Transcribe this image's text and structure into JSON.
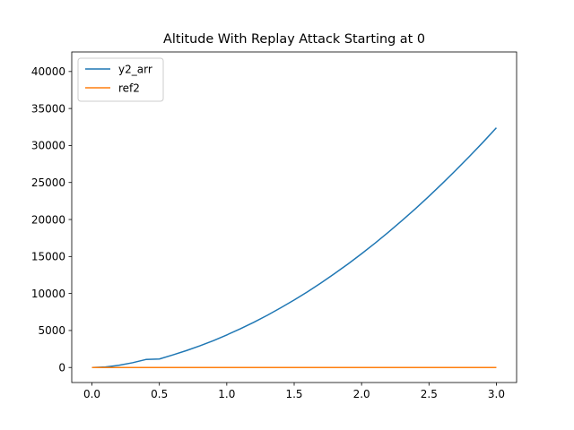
{
  "chart_data": {
    "type": "line",
    "title": "Altitude With Replay Attack Starting at 0",
    "xlabel": "",
    "ylabel": "",
    "xlim": [
      -0.15,
      3.15
    ],
    "ylim": [
      -2031,
      42642
    ],
    "xticks": [
      0.0,
      0.5,
      1.0,
      1.5,
      2.0,
      2.5,
      3.0
    ],
    "xtick_labels": [
      "0.0",
      "0.5",
      "1.0",
      "1.5",
      "2.0",
      "2.5",
      "3.0"
    ],
    "yticks": [
      0,
      5000,
      10000,
      15000,
      20000,
      25000,
      30000,
      35000,
      40000
    ],
    "ytick_labels": [
      "0",
      "5000",
      "10000",
      "15000",
      "20000",
      "25000",
      "30000",
      "35000",
      "40000"
    ],
    "grid": false,
    "legend_position": "upper left",
    "series": [
      {
        "name": "y2_arr",
        "color": "#1f77b4",
        "x": [
          0.0,
          0.1,
          0.2,
          0.3,
          0.4,
          0.5,
          0.6,
          0.7,
          0.8,
          0.9,
          1.0,
          1.1,
          1.2,
          1.3,
          1.4,
          1.5,
          1.6,
          1.7,
          1.8,
          1.9,
          2.0,
          2.1,
          2.2,
          2.3,
          2.4,
          2.5,
          2.6,
          2.7,
          2.8,
          2.9,
          3.0
        ],
        "y": [
          0,
          72,
          300,
          640,
          1080,
          1150,
          1700,
          2280,
          2920,
          3620,
          4400,
          5220,
          6100,
          7050,
          8060,
          9120,
          10240,
          11440,
          12690,
          14000,
          15370,
          16800,
          18300,
          19860,
          21460,
          23140,
          24880,
          26680,
          28520,
          30420,
          32400
        ]
      },
      {
        "name": "ref2",
        "color": "#ff7f0e",
        "x": [
          0.0,
          3.0
        ],
        "y": [
          0,
          0
        ]
      }
    ]
  }
}
